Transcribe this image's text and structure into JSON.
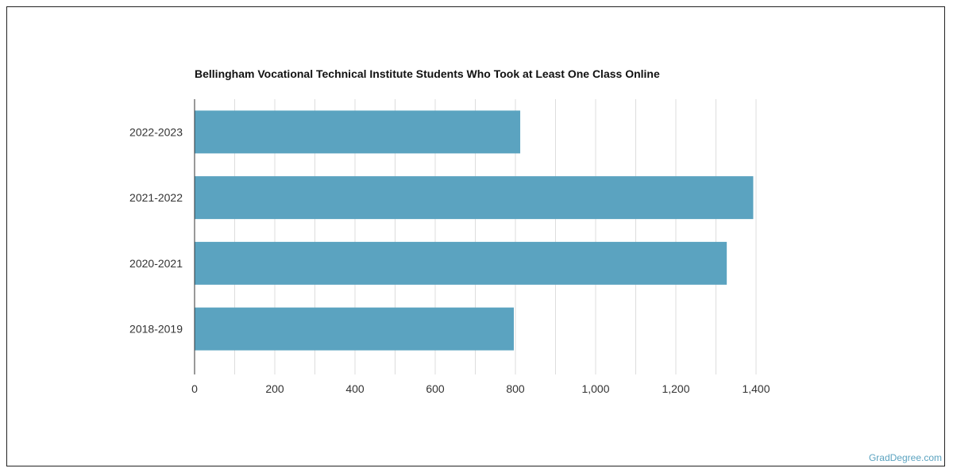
{
  "watermark": "GradDegree.com",
  "chart_data": {
    "type": "bar",
    "orientation": "horizontal",
    "title": "Bellingham Vocational Technical Institute Students Who Took at Least One Class Online",
    "xlabel": "",
    "ylabel": "",
    "categories": [
      "2022-2023",
      "2021-2022",
      "2020-2021",
      "2018-2019"
    ],
    "values": [
      812,
      1393,
      1327,
      796
    ],
    "xlim": [
      0,
      1400
    ],
    "xticks": [
      0,
      200,
      400,
      600,
      800,
      1000,
      1200,
      1400
    ],
    "xtick_labels": [
      "0",
      "200",
      "400",
      "600",
      "800",
      "1,000",
      "1,200",
      "1,400"
    ],
    "grid": true,
    "legend": "none",
    "colors": {
      "bar": "#5ba3c0",
      "grid": "#dddddd",
      "axis": "#333333"
    }
  }
}
